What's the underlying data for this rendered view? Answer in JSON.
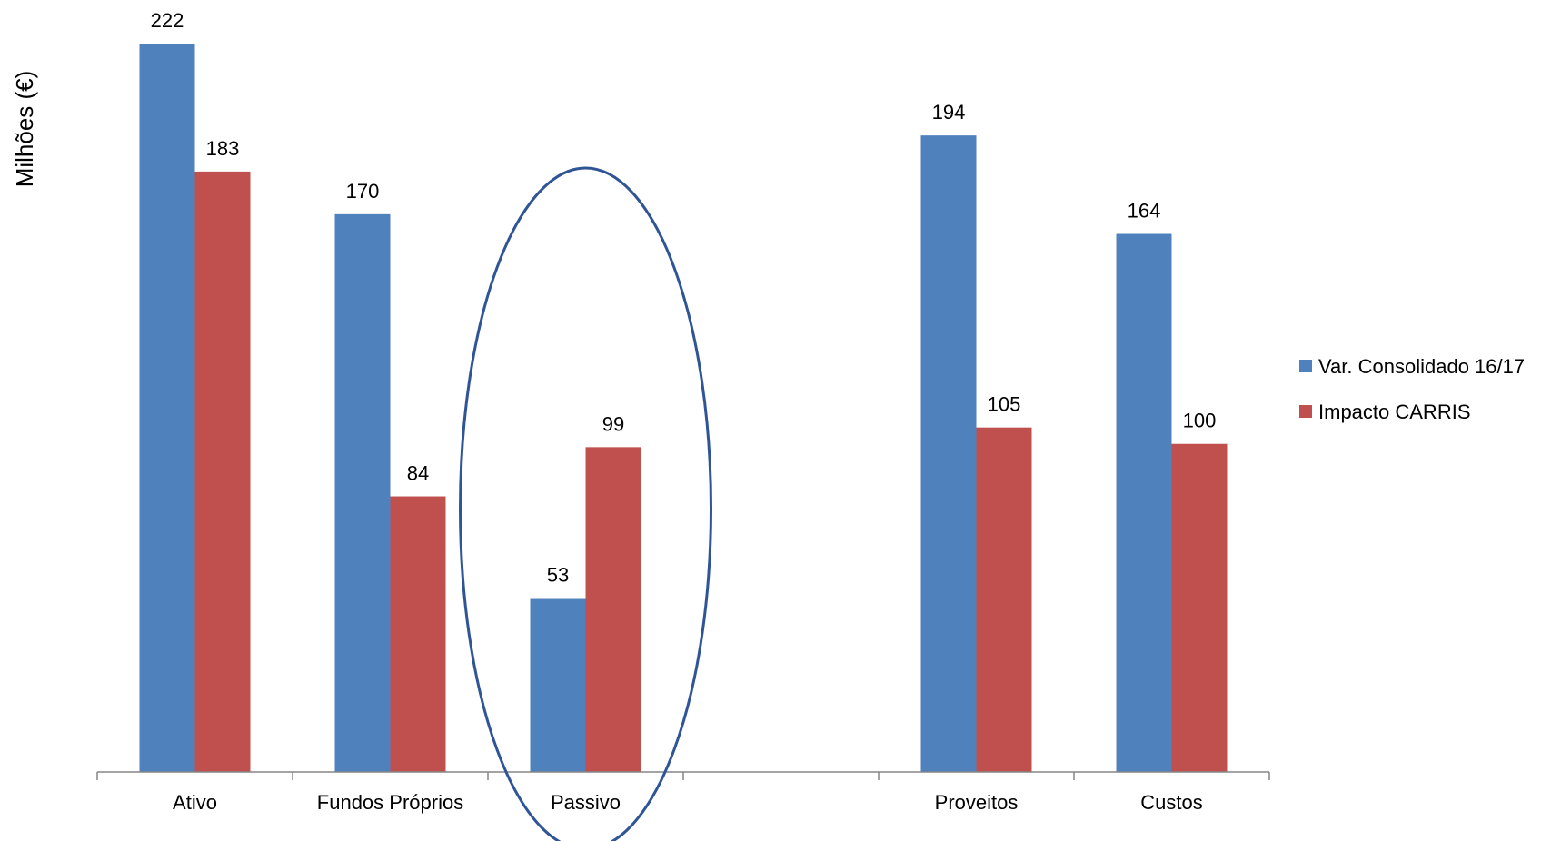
{
  "chart_data": {
    "type": "bar",
    "title": "",
    "xlabel": "",
    "ylabel": "Milhões (€)",
    "categories": [
      "Ativo",
      "Fundos Próprios",
      "Passivo",
      "",
      "Proveitos",
      "Custos"
    ],
    "series": [
      {
        "name": "Var. Consolidado 16/17",
        "color": "#4f81bd",
        "values": [
          222,
          170,
          53,
          null,
          194,
          164
        ]
      },
      {
        "name": "Impacto CARRIS",
        "color": "#c0504d",
        "values": [
          183,
          84,
          99,
          null,
          105,
          100
        ]
      }
    ],
    "ylim": [
      0,
      235
    ],
    "grid": false,
    "legend_position": "right",
    "highlight": {
      "category": "Passivo",
      "shape": "ellipse",
      "color": "#2f5597"
    }
  }
}
